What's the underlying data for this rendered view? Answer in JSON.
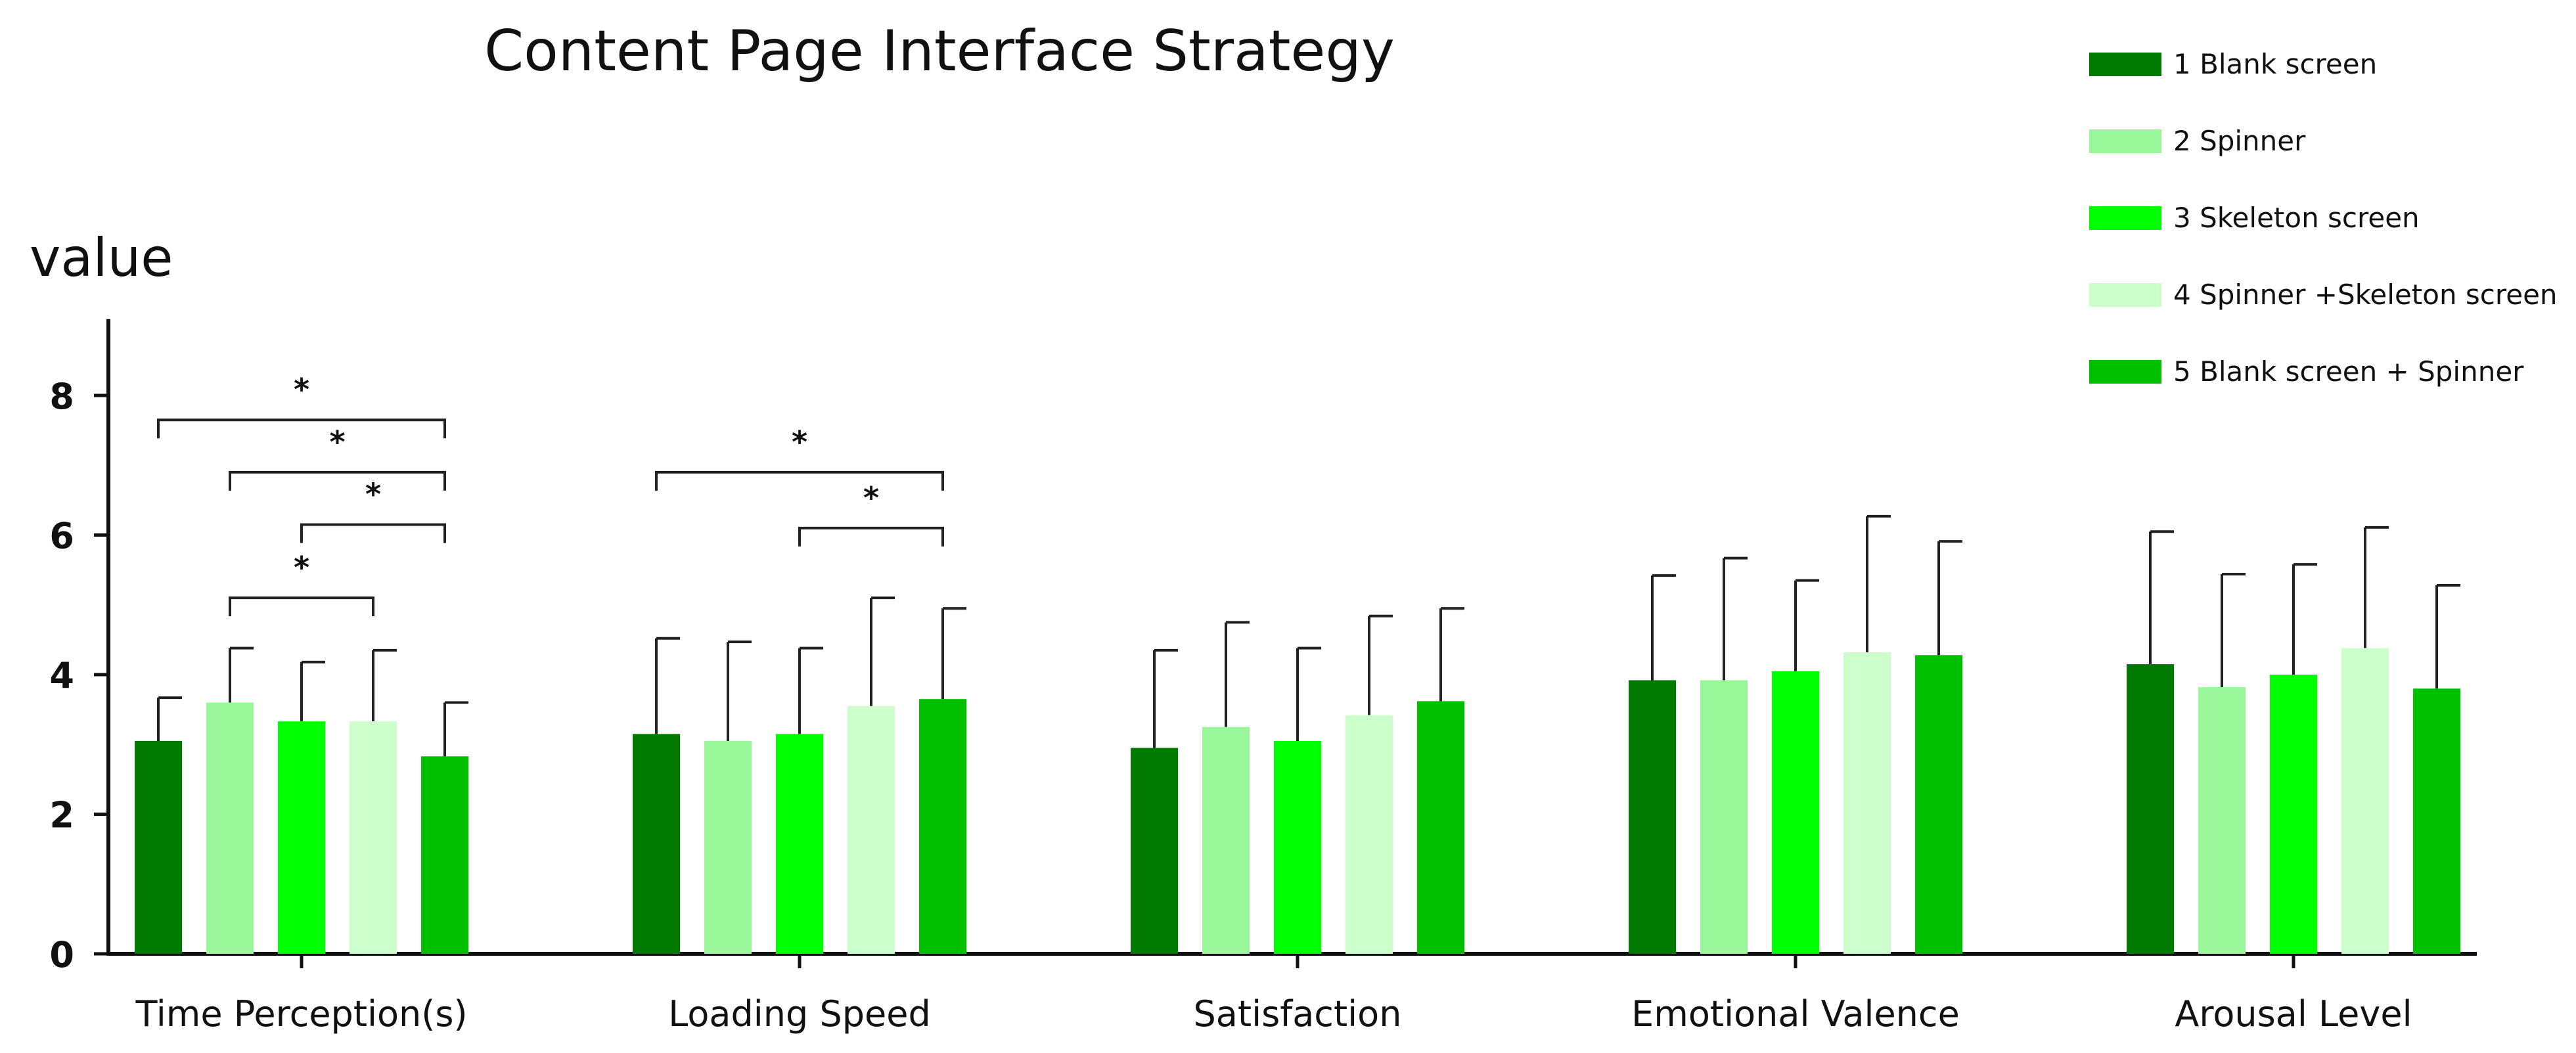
{
  "chart_data": {
    "type": "bar",
    "title": "Content Page Interface Strategy",
    "ylabel": "value",
    "xlabel": "",
    "ylim": [
      0,
      9
    ],
    "yticks": [
      0,
      2,
      4,
      6,
      8
    ],
    "legend_position": "top-right",
    "categories": [
      "Time Perception(s)",
      "Loading Speed",
      "Satisfaction",
      "Emotional Valence",
      "Arousal Level"
    ],
    "series": [
      {
        "name": "1 Blank screen",
        "color": "#007A00",
        "values": [
          3.05,
          3.15,
          2.95,
          3.92,
          4.15
        ],
        "errors": [
          0.62,
          1.37,
          1.4,
          1.5,
          1.9
        ]
      },
      {
        "name": "2 Spinner",
        "color": "#99F799",
        "values": [
          3.6,
          3.05,
          3.25,
          3.92,
          3.82
        ],
        "errors": [
          0.78,
          1.42,
          1.5,
          1.75,
          1.62
        ]
      },
      {
        "name": "3 Skeleton screen",
        "color": "#00FF00",
        "values": [
          3.33,
          3.15,
          3.05,
          4.05,
          4.0
        ],
        "errors": [
          0.85,
          1.23,
          1.33,
          1.3,
          1.58
        ]
      },
      {
        "name": "4 Spinner +Skeleton screen",
        "color": "#CCFFCC",
        "values": [
          3.33,
          3.55,
          3.42,
          4.32,
          4.38
        ],
        "errors": [
          1.02,
          1.55,
          1.42,
          1.95,
          1.73
        ]
      },
      {
        "name": "5 Blank screen + Spinner",
        "color": "#00C000",
        "values": [
          2.83,
          3.65,
          3.62,
          4.28,
          3.8
        ],
        "errors": [
          0.77,
          1.3,
          1.33,
          1.63,
          1.48
        ]
      }
    ],
    "significance": [
      {
        "category": 0,
        "from": 0,
        "to": 4,
        "y": 7.65,
        "label": "*"
      },
      {
        "category": 0,
        "from": 1,
        "to": 4,
        "y": 6.9,
        "label": "*"
      },
      {
        "category": 0,
        "from": 2,
        "to": 4,
        "y": 6.15,
        "label": "*"
      },
      {
        "category": 0,
        "from": 1,
        "to": 3,
        "y": 5.1,
        "label": "*"
      },
      {
        "category": 1,
        "from": 0,
        "to": 4,
        "y": 6.9,
        "label": "*"
      },
      {
        "category": 1,
        "from": 2,
        "to": 4,
        "y": 6.1,
        "label": "*"
      }
    ]
  }
}
